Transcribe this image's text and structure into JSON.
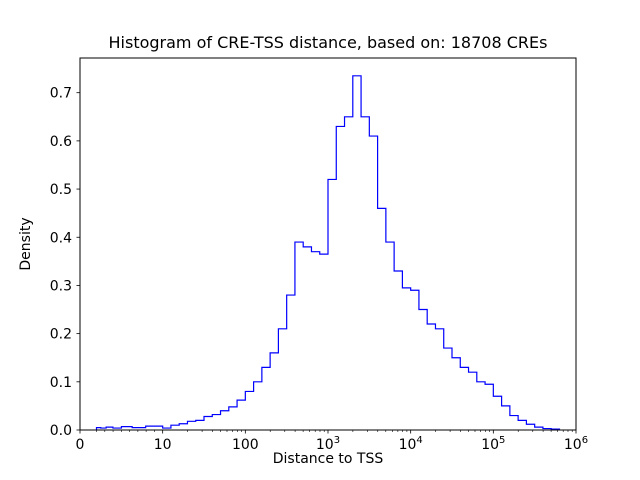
{
  "chart_data": {
    "type": "histogram",
    "title": "Histogram of CRE-TSS distance, based on: 18708 CREs",
    "xlabel": "Distance to TSS",
    "ylabel": "Density",
    "n_cres": 18708,
    "x_scale": "symlog",
    "line_color": "#0000ff",
    "ylim": [
      0,
      0.772
    ],
    "x_ticks": [
      {
        "value": 0,
        "label": "0"
      },
      {
        "value": 10,
        "label": "10"
      },
      {
        "value": 100,
        "label": "100"
      },
      {
        "value": 1000,
        "label": "10",
        "sup": "3"
      },
      {
        "value": 10000,
        "label": "10",
        "sup": "4"
      },
      {
        "value": 100000,
        "label": "10",
        "sup": "5"
      },
      {
        "value": 1000000,
        "label": "10",
        "sup": "6"
      }
    ],
    "y_ticks": [
      {
        "value": 0.0,
        "label": "0.0"
      },
      {
        "value": 0.1,
        "label": "0.1"
      },
      {
        "value": 0.2,
        "label": "0.2"
      },
      {
        "value": 0.3,
        "label": "0.3"
      },
      {
        "value": 0.4,
        "label": "0.4"
      },
      {
        "value": 0.5,
        "label": "0.5"
      },
      {
        "value": 0.6,
        "label": "0.6"
      },
      {
        "value": 0.7,
        "label": "0.7"
      }
    ],
    "bin_edges_log10": [
      0.3,
      0.4,
      0.5,
      0.6,
      0.7,
      0.8,
      0.9,
      1.0,
      1.1,
      1.2,
      1.3,
      1.4,
      1.5,
      1.6,
      1.7,
      1.8,
      1.9,
      2.0,
      2.1,
      2.2,
      2.3,
      2.4,
      2.5,
      2.6,
      2.7,
      2.8,
      2.9,
      3.0,
      3.1,
      3.2,
      3.3,
      3.4,
      3.5,
      3.6,
      3.7,
      3.8,
      3.9,
      4.0,
      4.1,
      4.2,
      4.3,
      4.4,
      4.5,
      4.6,
      4.7,
      4.8,
      4.9,
      5.0,
      5.1,
      5.2,
      5.3,
      5.4,
      5.5,
      5.6,
      5.7,
      5.8
    ],
    "densities": [
      0.005,
      0.004,
      0.006,
      0.004,
      0.007,
      0.005,
      0.008,
      0.004,
      0.01,
      0.013,
      0.018,
      0.02,
      0.028,
      0.032,
      0.04,
      0.048,
      0.062,
      0.08,
      0.1,
      0.13,
      0.16,
      0.21,
      0.28,
      0.39,
      0.38,
      0.37,
      0.365,
      0.52,
      0.63,
      0.65,
      0.735,
      0.65,
      0.61,
      0.46,
      0.39,
      0.33,
      0.295,
      0.29,
      0.25,
      0.22,
      0.21,
      0.17,
      0.15,
      0.13,
      0.12,
      0.1,
      0.095,
      0.07,
      0.05,
      0.03,
      0.02,
      0.012,
      0.006,
      0.003,
      0.002
    ]
  }
}
